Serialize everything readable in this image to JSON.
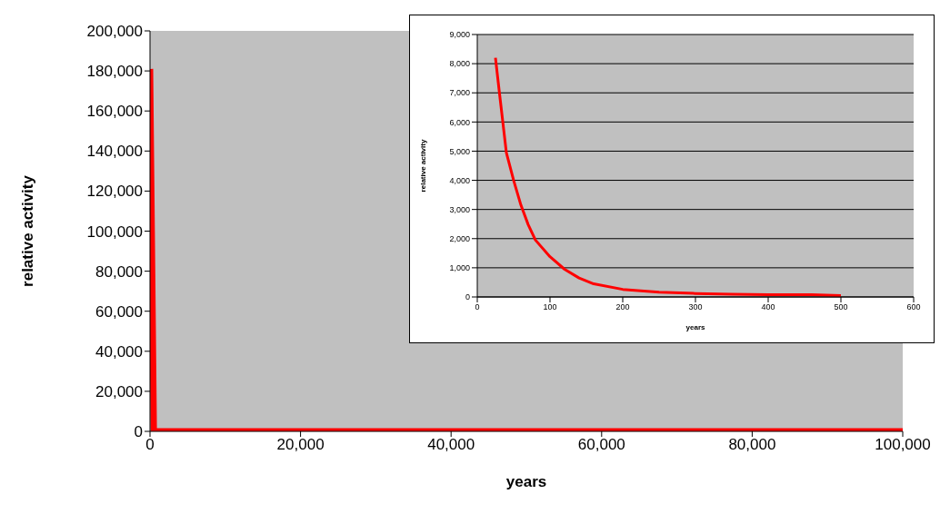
{
  "chart_data": [
    {
      "type": "line",
      "xlabel": "years",
      "ylabel": "relative activity",
      "x": [
        0,
        500,
        100000
      ],
      "series": [
        {
          "color": "#ff0000",
          "values": [
            181000,
            0,
            0
          ]
        }
      ],
      "xlim": [
        0,
        100000
      ],
      "xticks": [
        0,
        {
          "value": 20000,
          "label": "20,000"
        },
        {
          "value": 40000,
          "label": "40,000"
        },
        {
          "value": 60000,
          "label": "60,000"
        },
        {
          "value": 80000,
          "label": "80,000"
        },
        {
          "value": 100000,
          "label": "100,000"
        }
      ],
      "ylim": [
        0,
        200000
      ],
      "yticks": [
        0,
        {
          "value": 20000,
          "label": "20,000"
        },
        {
          "value": 40000,
          "label": "40,000"
        },
        {
          "value": 60000,
          "label": "60,000"
        },
        {
          "value": 80000,
          "label": "80,000"
        },
        {
          "value": 100000,
          "label": "100,000"
        },
        {
          "value": 120000,
          "label": "120,000"
        },
        {
          "value": 140000,
          "label": "140,000"
        },
        {
          "value": 160000,
          "label": "160,000"
        },
        {
          "value": 180000,
          "label": "180,000"
        },
        {
          "value": 200000,
          "label": "200,000"
        }
      ],
      "grid": false,
      "legend": false,
      "marker": "none"
    },
    {
      "type": "line",
      "xlabel": "years",
      "ylabel": "relative activity",
      "x": [
        25,
        30,
        40,
        50,
        60,
        70,
        80,
        100,
        120,
        140,
        160,
        200,
        250,
        300,
        350,
        400,
        460,
        500
      ],
      "series": [
        {
          "color": "#ff0000",
          "values": [
            8200,
            7100,
            4950,
            4000,
            3150,
            2480,
            1950,
            1380,
            950,
            650,
            450,
            260,
            160,
            120,
            90,
            80,
            80,
            50
          ]
        }
      ],
      "xlim": [
        0,
        600
      ],
      "xticks": [
        0,
        100,
        200,
        300,
        400,
        500,
        600
      ],
      "ylim": [
        0,
        9000
      ],
      "yticks": [
        0,
        {
          "value": 1000,
          "label": "1,000"
        },
        {
          "value": 2000,
          "label": "2,000"
        },
        {
          "value": 3000,
          "label": "3,000"
        },
        {
          "value": 4000,
          "label": "4,000"
        },
        {
          "value": 5000,
          "label": "5,000"
        },
        {
          "value": 6000,
          "label": "6,000"
        },
        {
          "value": 7000,
          "label": "7,000"
        },
        {
          "value": 8000,
          "label": "8,000"
        },
        {
          "value": 9000,
          "label": "9,000"
        }
      ],
      "grid": "y",
      "legend": false,
      "marker": "none"
    }
  ]
}
